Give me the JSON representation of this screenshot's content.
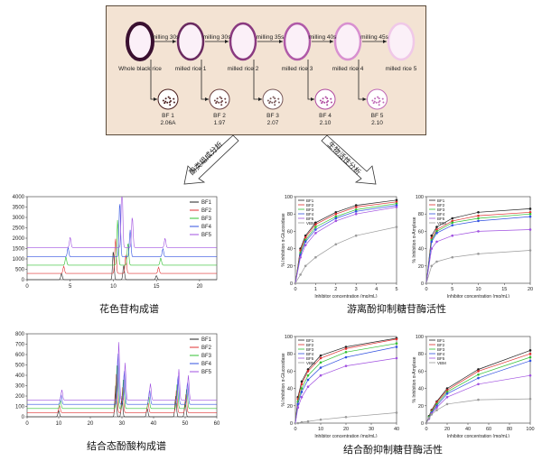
{
  "flow": {
    "stages": [
      "Whole black rice",
      "milled rice 1",
      "milled rice 2",
      "milled rice 3",
      "milled rice 4",
      "milled rice 5"
    ],
    "milling": [
      "milling  30s",
      "milling  30s",
      "milling  35s",
      "milling  40s",
      "milling  45s"
    ],
    "fractions": [
      {
        "name": "BF 1",
        "value": "2.06A"
      },
      {
        "name": "BF 2",
        "value": "1.97"
      },
      {
        "name": "BF 3",
        "value": "2.07"
      },
      {
        "name": "BF 4",
        "value": "2.10"
      },
      {
        "name": "BF 5",
        "value": "2.10"
      }
    ],
    "grain_colors": [
      "#3a1030",
      "#6a2a60",
      "#8a3a80",
      "#b05aa8",
      "#d890d0",
      "#f0c8e8"
    ],
    "fraction_colors": [
      "#4a2020",
      "#6a4040",
      "#7a5a5a",
      "#b04aa0",
      "#c06ab8"
    ]
  },
  "arrows": {
    "left": "酚类组成分析",
    "right": "生物活性分析"
  },
  "captions": {
    "anthocyanin": "花色苷构成谱",
    "free_phenol": "游离酚抑制糖苷酶活性",
    "bound_acid": "结合态酚酸构成谱",
    "bound_phenol": "结合酚抑制糖苷酶活性"
  },
  "colors": {
    "BF1": "#222222",
    "BF2": "#e03030",
    "BF3": "#30c030",
    "BF4": "#3050e0",
    "BF5": "#a050e0",
    "VBM": "#9a9a9a"
  },
  "chart_data": [
    {
      "type": "line",
      "name": "anthocyanin-chromatogram",
      "xlim": [
        0,
        22
      ],
      "ylim": [
        0,
        4000
      ],
      "xticks": [
        "0",
        "5",
        "10",
        "15",
        "20"
      ],
      "yticks": [
        "0",
        "500",
        "1000",
        "1500",
        "2000",
        "2500",
        "3000",
        "3500",
        "4000"
      ],
      "series": [
        {
          "name": "BF1",
          "offset": 0
        },
        {
          "name": "BF2",
          "offset": 300
        },
        {
          "name": "BF3",
          "offset": 700
        },
        {
          "name": "BF4",
          "offset": 1100
        },
        {
          "name": "BF5",
          "offset": 1550
        }
      ],
      "peaks": [
        {
          "x": 10.0,
          "heights": [
            1400,
            1700,
            2200,
            2700,
            3300
          ]
        },
        {
          "x": 11.2,
          "heights": [
            700,
            900,
            1100,
            1300,
            1500
          ]
        },
        {
          "x": 4.0,
          "heights": [
            300,
            350,
            400,
            450,
            500
          ]
        },
        {
          "x": 15.0,
          "heights": [
            200,
            300,
            350,
            400,
            450
          ]
        }
      ]
    },
    {
      "type": "line",
      "name": "free-phenol-alpha-glucosidase",
      "ylabel": "% Inhibition α-Glucosidase",
      "xlabel": "Inhibitor concentration (mg/mL)",
      "xlim": [
        0,
        5
      ],
      "ylim": [
        0,
        100
      ],
      "x": [
        0.25,
        0.5,
        1,
        2,
        3,
        5
      ],
      "series": [
        {
          "name": "BF1",
          "values": [
            40,
            55,
            70,
            82,
            90,
            96
          ]
        },
        {
          "name": "BF2",
          "values": [
            38,
            53,
            68,
            80,
            88,
            94
          ]
        },
        {
          "name": "BF3",
          "values": [
            35,
            50,
            65,
            77,
            85,
            92
          ]
        },
        {
          "name": "BF4",
          "values": [
            33,
            48,
            62,
            75,
            83,
            90
          ]
        },
        {
          "name": "BF5",
          "values": [
            30,
            44,
            58,
            72,
            80,
            88
          ]
        },
        {
          "name": "VBM",
          "values": [
            10,
            20,
            30,
            45,
            55,
            65
          ]
        }
      ]
    },
    {
      "type": "line",
      "name": "free-phenol-alpha-amylase",
      "ylabel": "% Inhibition α-Amylase",
      "xlabel": "Inhibitor concentration (mg/mL)",
      "xlim": [
        0,
        20
      ],
      "ylim": [
        0,
        100
      ],
      "x": [
        1,
        2,
        5,
        10,
        20
      ],
      "series": [
        {
          "name": "BF1",
          "values": [
            55,
            65,
            75,
            82,
            86
          ]
        },
        {
          "name": "BF2",
          "values": [
            52,
            62,
            72,
            78,
            82
          ]
        },
        {
          "name": "BF3",
          "values": [
            50,
            60,
            70,
            75,
            80
          ]
        },
        {
          "name": "BF4",
          "values": [
            48,
            58,
            67,
            72,
            77
          ]
        },
        {
          "name": "BF5",
          "values": [
            40,
            48,
            55,
            60,
            62
          ]
        },
        {
          "name": "VBM",
          "values": [
            20,
            25,
            30,
            34,
            38
          ]
        }
      ]
    },
    {
      "type": "line",
      "name": "bound-acid-chromatogram",
      "xlim": [
        0,
        60
      ],
      "ylim": [
        0,
        800
      ],
      "xticks": [
        "0",
        "10",
        "20",
        "30",
        "40",
        "50",
        "60"
      ],
      "yticks": [
        "0",
        "100",
        "200",
        "300",
        "400",
        "500",
        "600",
        "700",
        "800"
      ],
      "series": [
        {
          "name": "BF1",
          "offset": 0
        },
        {
          "name": "BF2",
          "offset": 40
        },
        {
          "name": "BF3",
          "offset": 80
        },
        {
          "name": "BF4",
          "offset": 120
        },
        {
          "name": "BF5",
          "offset": 160
        }
      ],
      "peaks": [
        {
          "x": 28.0,
          "heights": [
            300,
            380,
            450,
            500,
            560
          ]
        },
        {
          "x": 30.0,
          "heights": [
            200,
            250,
            300,
            330,
            360
          ]
        },
        {
          "x": 47.0,
          "heights": [
            200,
            220,
            250,
            280,
            300
          ]
        },
        {
          "x": 50.0,
          "heights": [
            150,
            180,
            200,
            220,
            240
          ]
        },
        {
          "x": 38.0,
          "heights": [
            80,
            100,
            120,
            140,
            160
          ]
        },
        {
          "x": 10.0,
          "heights": [
            60,
            70,
            80,
            90,
            100
          ]
        }
      ]
    },
    {
      "type": "line",
      "name": "bound-phenol-alpha-glucosidase",
      "ylabel": "% Inhibition α-Glucosidase",
      "xlabel": "Inhibitor concentration (mg/mL)",
      "xlim": [
        0,
        40
      ],
      "ylim": [
        0,
        100
      ],
      "x": [
        1,
        2.5,
        5,
        10,
        20,
        40
      ],
      "series": [
        {
          "name": "BF1",
          "values": [
            30,
            48,
            62,
            78,
            88,
            98
          ]
        },
        {
          "name": "BF2",
          "values": [
            28,
            45,
            60,
            75,
            86,
            97
          ]
        },
        {
          "name": "BF3",
          "values": [
            25,
            40,
            55,
            70,
            82,
            92
          ]
        },
        {
          "name": "BF4",
          "values": [
            22,
            36,
            50,
            64,
            76,
            88
          ]
        },
        {
          "name": "BF5",
          "values": [
            18,
            30,
            42,
            55,
            66,
            75
          ]
        },
        {
          "name": "VBM",
          "values": [
            0,
            1,
            2,
            4,
            7,
            12
          ]
        }
      ]
    },
    {
      "type": "line",
      "name": "bound-phenol-alpha-amylase",
      "ylabel": "% Inhibition α-Amylase",
      "xlabel": "Inhibitor concentration (mg/mL)",
      "xlim": [
        0,
        100
      ],
      "ylim": [
        0,
        100
      ],
      "x": [
        2.5,
        5,
        10,
        20,
        50,
        100
      ],
      "series": [
        {
          "name": "BF1",
          "values": [
            8,
            15,
            25,
            40,
            62,
            84
          ]
        },
        {
          "name": "BF2",
          "values": [
            7,
            14,
            24,
            38,
            60,
            80
          ]
        },
        {
          "name": "BF3",
          "values": [
            7,
            13,
            22,
            36,
            56,
            76
          ]
        },
        {
          "name": "BF4",
          "values": [
            6,
            12,
            20,
            34,
            52,
            72
          ]
        },
        {
          "name": "BF5",
          "values": [
            5,
            11,
            18,
            30,
            45,
            55
          ]
        },
        {
          "name": "VBM",
          "values": [
            6,
            10,
            15,
            22,
            27,
            28
          ]
        }
      ]
    }
  ]
}
